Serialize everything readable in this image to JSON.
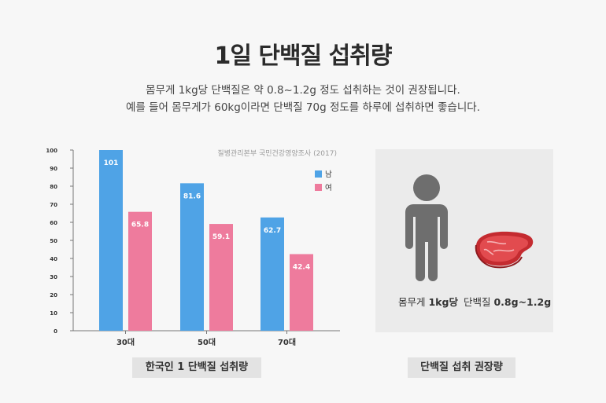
{
  "header": {
    "title": "1일 단백질 섭취량",
    "subtitle_line1": "몸무게 1kg당 단백질은 약 0.8~1.2g 정도 섭취하는 것이 권장됩니다.",
    "subtitle_line2": "예를 들어 몸무게가 60kg이라면 단백질 70g 정도를 하루에 섭취하면 좋습니다."
  },
  "chart_data": {
    "type": "bar",
    "source": "질병관리본부 국민건강영양조사 (2017)",
    "categories": [
      "30대",
      "50대",
      "70대"
    ],
    "series": [
      {
        "name": "남",
        "values": [
          101,
          81.6,
          62.7
        ],
        "color": "#4fa3e6"
      },
      {
        "name": "여",
        "values": [
          65.8,
          59.1,
          42.4
        ],
        "color": "#ee7b9d"
      }
    ],
    "ylim": [
      0,
      100
    ],
    "yticks": [
      0,
      10,
      20,
      30,
      40,
      50,
      60,
      70,
      80,
      90,
      100
    ],
    "legend": "top-right",
    "grid": false
  },
  "captions": {
    "chart": "한국인 1 단백질 섭취량",
    "recommend": "단백질 섭취 권장량"
  },
  "panel": {
    "weight_label_prefix": "몸무게 ",
    "weight_label_value": "1kg당",
    "protein_label_prefix": "단백질 ",
    "protein_label_value": "0.8g~1.2g"
  },
  "icons": {
    "person": "person-icon",
    "meat": "steak-icon"
  }
}
